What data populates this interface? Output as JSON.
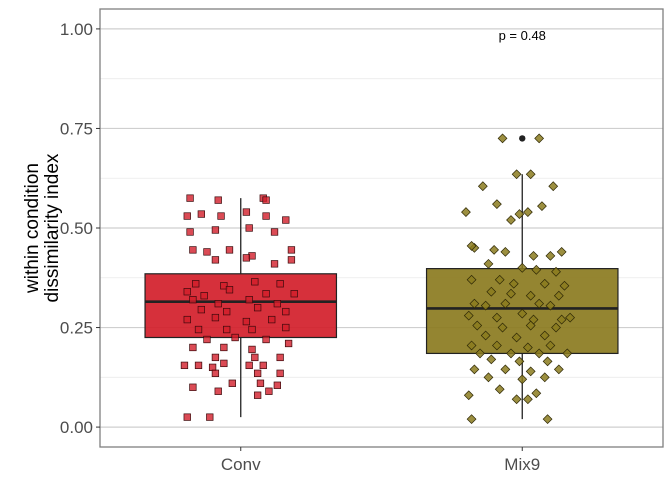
{
  "chart_data": {
    "type": "box",
    "ylabel": "within condition\ndissimilarity index",
    "xlabel": "",
    "ylim": [
      -0.05,
      1.05
    ],
    "yticks": [
      0.0,
      0.25,
      0.5,
      0.75,
      1.0
    ],
    "ytick_labels": [
      "0.00",
      "0.25",
      "0.50",
      "0.75",
      "1.00"
    ],
    "grid": true,
    "annotation": {
      "text": "p = 0.48",
      "category": "Mix9",
      "y": 0.985
    },
    "categories": [
      "Conv",
      "Mix9"
    ],
    "groups": [
      {
        "category": "Conv",
        "color": "#d21e2a",
        "marker": "square",
        "box": {
          "lower_whisker": 0.025,
          "q1": 0.225,
          "median": 0.315,
          "q3": 0.385,
          "upper_whisker": 0.575
        },
        "outliers": [],
        "points": [
          [
            -0.19,
            0.025
          ],
          [
            -0.11,
            0.025
          ],
          [
            -0.18,
            0.575
          ],
          [
            -0.08,
            0.57
          ],
          [
            0.08,
            0.575
          ],
          [
            0.09,
            0.57
          ],
          [
            -0.19,
            0.53
          ],
          [
            -0.14,
            0.535
          ],
          [
            -0.07,
            0.53
          ],
          [
            0.02,
            0.54
          ],
          [
            0.09,
            0.53
          ],
          [
            0.16,
            0.52
          ],
          [
            -0.18,
            0.49
          ],
          [
            -0.09,
            0.495
          ],
          [
            0.03,
            0.5
          ],
          [
            0.12,
            0.49
          ],
          [
            -0.17,
            0.445
          ],
          [
            -0.12,
            0.44
          ],
          [
            -0.04,
            0.445
          ],
          [
            0.04,
            0.43
          ],
          [
            0.18,
            0.445
          ],
          [
            -0.09,
            0.42
          ],
          [
            0.02,
            0.425
          ],
          [
            0.12,
            0.41
          ],
          [
            0.18,
            0.42
          ],
          [
            -0.16,
            0.36
          ],
          [
            -0.06,
            0.355
          ],
          [
            0.05,
            0.365
          ],
          [
            0.14,
            0.36
          ],
          [
            -0.19,
            0.34
          ],
          [
            -0.13,
            0.33
          ],
          [
            -0.04,
            0.345
          ],
          [
            0.09,
            0.335
          ],
          [
            0.19,
            0.335
          ],
          [
            -0.17,
            0.32
          ],
          [
            -0.08,
            0.31
          ],
          [
            0.03,
            0.32
          ],
          [
            0.13,
            0.31
          ],
          [
            -0.14,
            0.295
          ],
          [
            -0.05,
            0.29
          ],
          [
            0.06,
            0.3
          ],
          [
            0.16,
            0.29
          ],
          [
            -0.19,
            0.27
          ],
          [
            -0.09,
            0.275
          ],
          [
            0.02,
            0.265
          ],
          [
            0.11,
            0.27
          ],
          [
            -0.15,
            0.245
          ],
          [
            -0.05,
            0.245
          ],
          [
            0.04,
            0.245
          ],
          [
            0.16,
            0.25
          ],
          [
            -0.12,
            0.22
          ],
          [
            -0.02,
            0.225
          ],
          [
            0.09,
            0.22
          ],
          [
            -0.17,
            0.2
          ],
          [
            -0.06,
            0.2
          ],
          [
            0.04,
            0.195
          ],
          [
            0.17,
            0.21
          ],
          [
            -0.09,
            0.175
          ],
          [
            0.05,
            0.175
          ],
          [
            0.14,
            0.175
          ],
          [
            -0.2,
            0.155
          ],
          [
            -0.15,
            0.155
          ],
          [
            -0.1,
            0.15
          ],
          [
            -0.06,
            0.16
          ],
          [
            0.03,
            0.155
          ],
          [
            0.08,
            0.155
          ],
          [
            -0.09,
            0.135
          ],
          [
            0.06,
            0.135
          ],
          [
            0.14,
            0.135
          ],
          [
            -0.03,
            0.11
          ],
          [
            0.07,
            0.11
          ],
          [
            0.13,
            0.105
          ],
          [
            -0.17,
            0.1
          ],
          [
            -0.08,
            0.09
          ],
          [
            0.1,
            0.09
          ],
          [
            0.06,
            0.08
          ]
        ]
      },
      {
        "category": "Mix9",
        "color": "#8b7b1f",
        "marker": "diamond",
        "box": {
          "lower_whisker": 0.02,
          "q1": 0.185,
          "median": 0.298,
          "q3": 0.398,
          "upper_whisker": 0.635
        },
        "outliers": [
          0.725
        ],
        "points": [
          [
            -0.07,
            0.725
          ],
          [
            0.06,
            0.725
          ],
          [
            -0.02,
            0.635
          ],
          [
            0.03,
            0.635
          ],
          [
            0.11,
            0.605
          ],
          [
            -0.14,
            0.605
          ],
          [
            -0.2,
            0.54
          ],
          [
            -0.09,
            0.56
          ],
          [
            -0.01,
            0.535
          ],
          [
            0.02,
            0.54
          ],
          [
            0.07,
            0.555
          ],
          [
            -0.04,
            0.52
          ],
          [
            -0.17,
            0.45
          ],
          [
            -0.1,
            0.445
          ],
          [
            -0.06,
            0.44
          ],
          [
            0.04,
            0.43
          ],
          [
            0.1,
            0.43
          ],
          [
            0.14,
            0.44
          ],
          [
            -0.18,
            0.455
          ],
          [
            -0.12,
            0.41
          ],
          [
            0.0,
            0.4
          ],
          [
            0.05,
            0.395
          ],
          [
            0.12,
            0.39
          ],
          [
            -0.18,
            0.37
          ],
          [
            -0.08,
            0.37
          ],
          [
            -0.03,
            0.36
          ],
          [
            0.08,
            0.36
          ],
          [
            0.15,
            0.355
          ],
          [
            -0.11,
            0.34
          ],
          [
            -0.04,
            0.335
          ],
          [
            0.03,
            0.33
          ],
          [
            0.13,
            0.33
          ],
          [
            -0.17,
            0.31
          ],
          [
            -0.13,
            0.305
          ],
          [
            -0.06,
            0.31
          ],
          [
            0.06,
            0.31
          ],
          [
            0.1,
            0.305
          ],
          [
            -0.19,
            0.28
          ],
          [
            -0.09,
            0.275
          ],
          [
            0.0,
            0.285
          ],
          [
            0.04,
            0.27
          ],
          [
            0.14,
            0.27
          ],
          [
            0.17,
            0.275
          ],
          [
            -0.16,
            0.255
          ],
          [
            -0.07,
            0.25
          ],
          [
            0.03,
            0.255
          ],
          [
            0.12,
            0.25
          ],
          [
            -0.13,
            0.23
          ],
          [
            -0.02,
            0.225
          ],
          [
            0.08,
            0.23
          ],
          [
            -0.18,
            0.205
          ],
          [
            -0.09,
            0.205
          ],
          [
            0.02,
            0.2
          ],
          [
            0.1,
            0.205
          ],
          [
            -0.15,
            0.185
          ],
          [
            -0.04,
            0.185
          ],
          [
            0.06,
            0.185
          ],
          [
            0.16,
            0.185
          ],
          [
            -0.11,
            0.17
          ],
          [
            -0.01,
            0.165
          ],
          [
            0.09,
            0.165
          ],
          [
            -0.17,
            0.145
          ],
          [
            -0.06,
            0.145
          ],
          [
            0.03,
            0.14
          ],
          [
            0.13,
            0.145
          ],
          [
            -0.12,
            0.125
          ],
          [
            0.0,
            0.12
          ],
          [
            0.08,
            0.125
          ],
          [
            -0.19,
            0.08
          ],
          [
            -0.08,
            0.095
          ],
          [
            0.02,
            0.07
          ],
          [
            0.05,
            0.085
          ],
          [
            -0.02,
            0.07
          ],
          [
            -0.18,
            0.02
          ],
          [
            0.09,
            0.02
          ]
        ]
      }
    ]
  }
}
